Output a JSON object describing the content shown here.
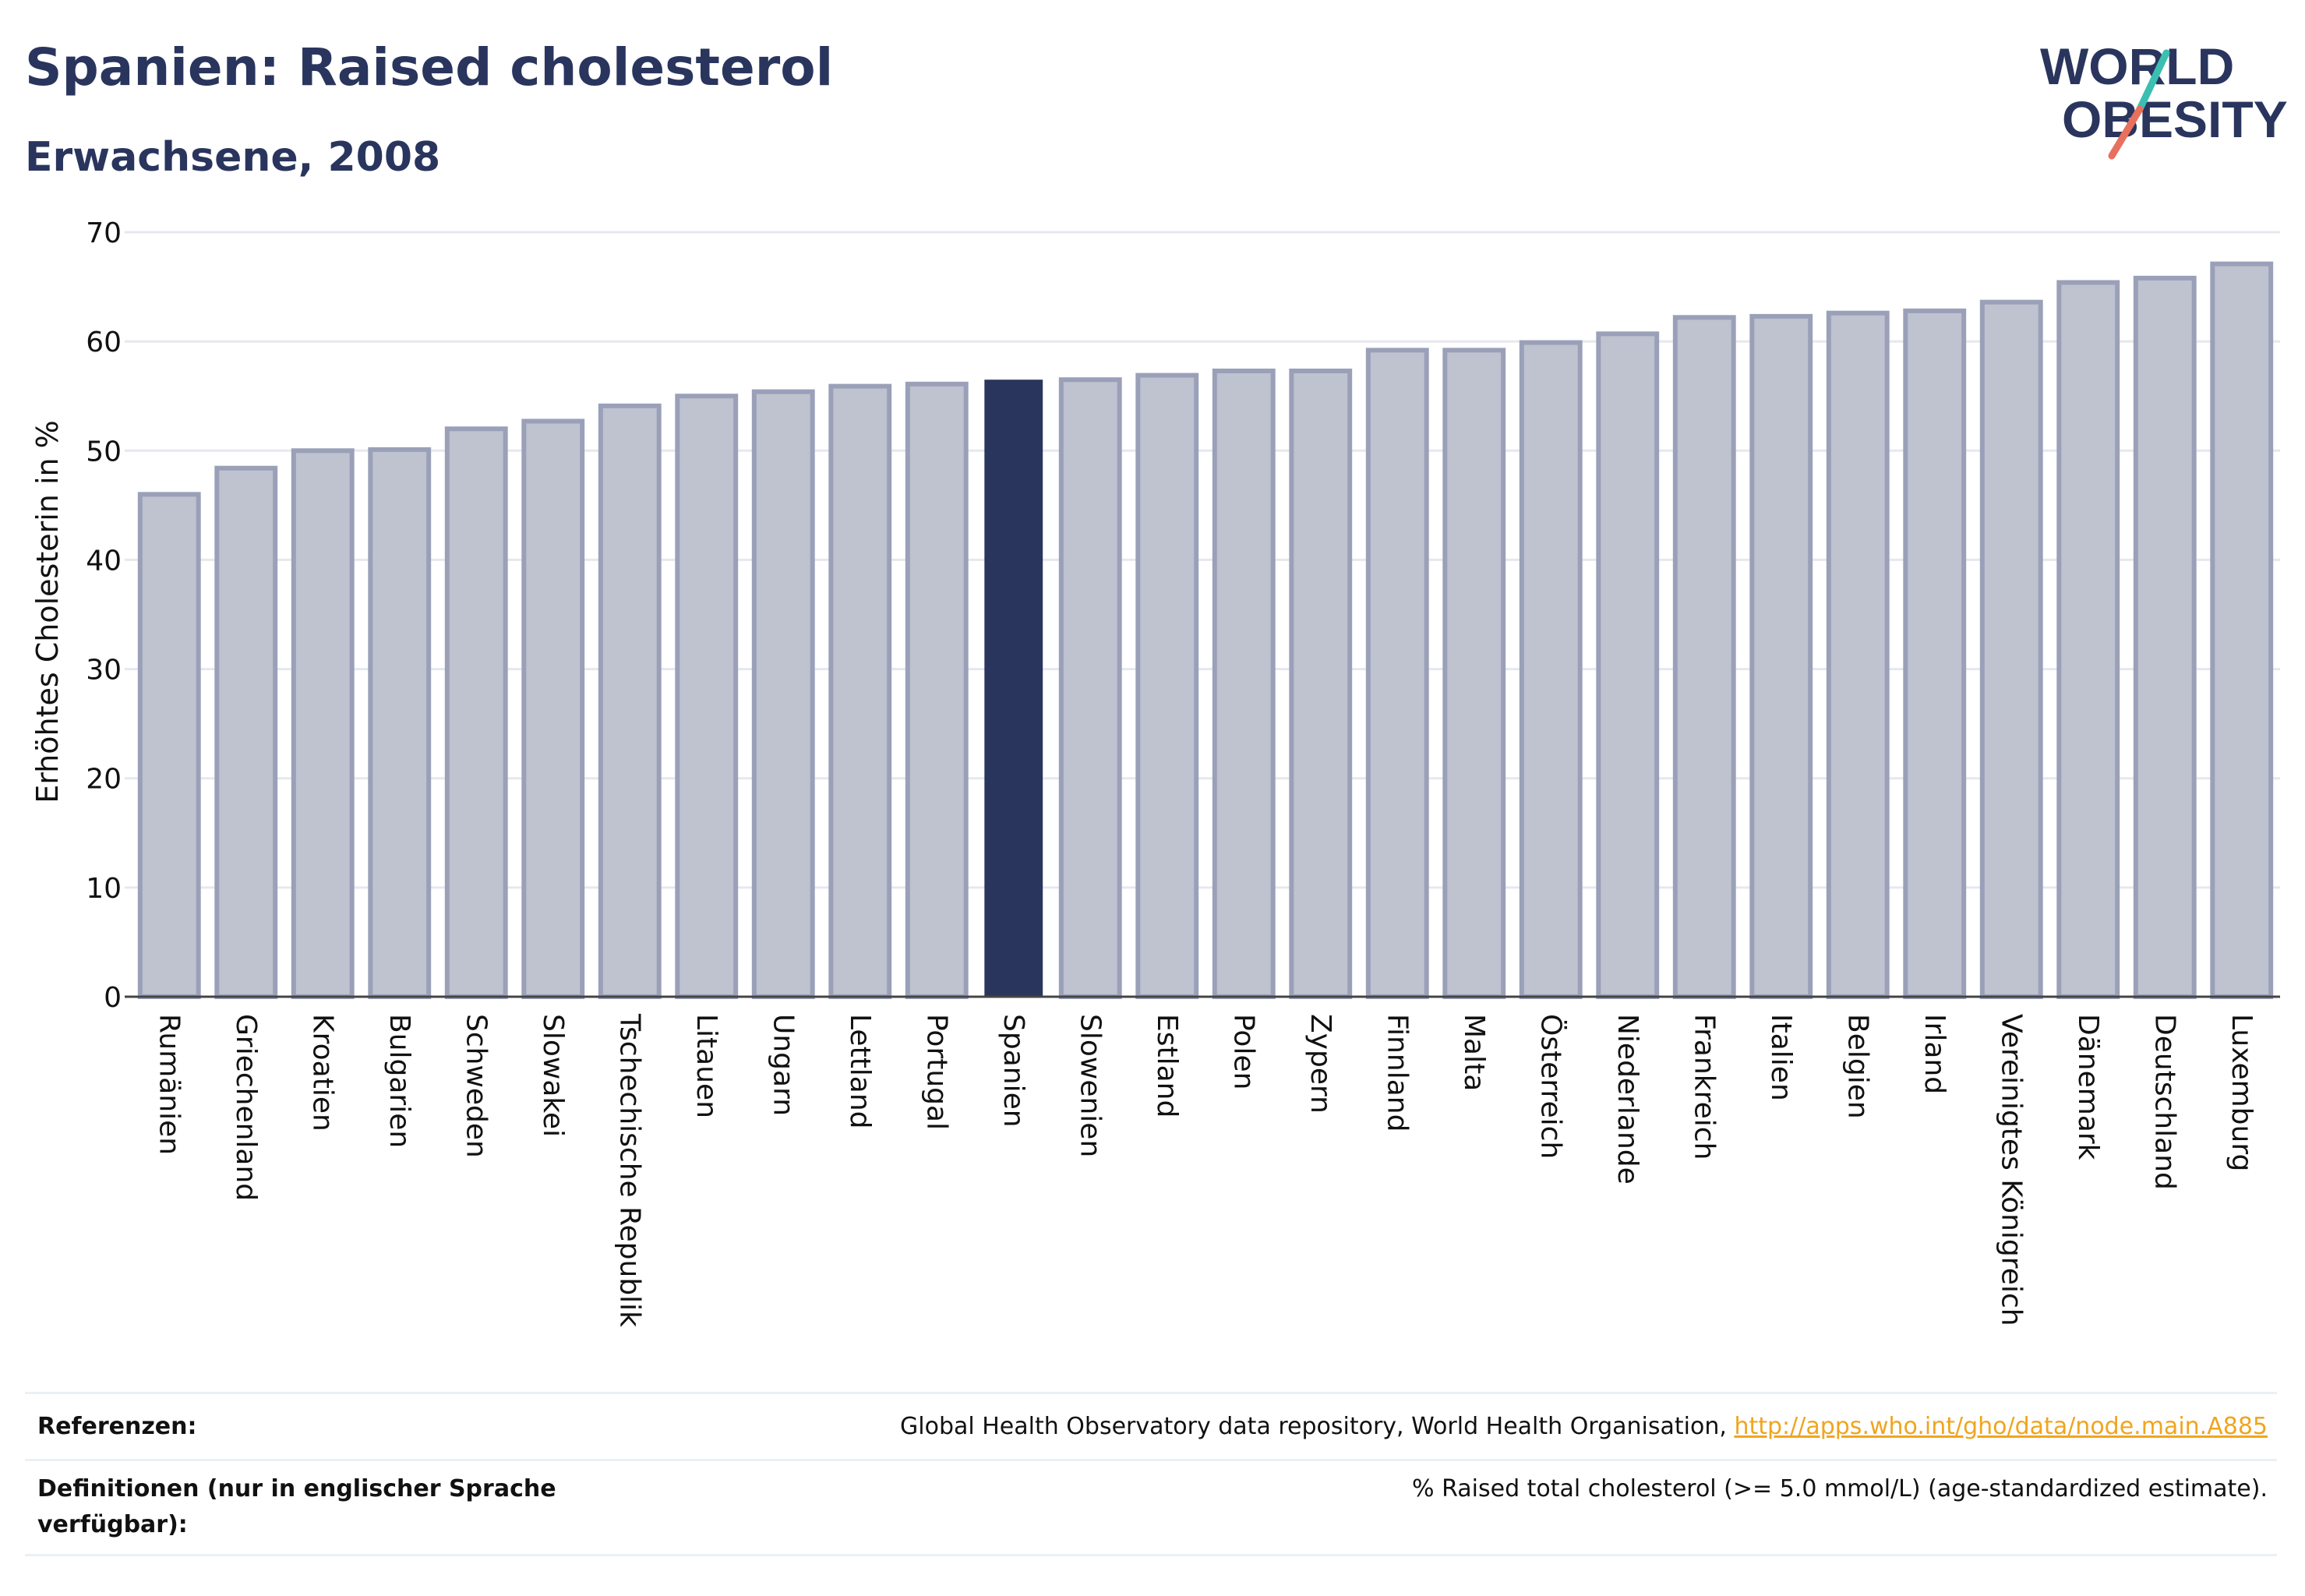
{
  "header": {
    "title": "Spanien: Raised cholesterol",
    "subtitle": "Erwachsene, 2008"
  },
  "logo": {
    "line1": "WORLD",
    "line2": "OBESITY",
    "text_color": "#2a355e",
    "accent_teal": "#3bbfb1",
    "accent_coral": "#e8705e"
  },
  "colors": {
    "bar_fill": "#bfc2cf",
    "bar_stroke": "#9aa0b8",
    "highlight": "#2a355e",
    "grid": "#e6e8ef",
    "axis_text": "#111111"
  },
  "chart_data": {
    "type": "bar",
    "ylabel": "Erhöhtes Cholesterin in %",
    "xlabel": "",
    "ylim": [
      0,
      70
    ],
    "yticks": [
      0,
      10,
      20,
      30,
      40,
      50,
      60,
      70
    ],
    "grid": true,
    "highlight_category": "Spanien",
    "categories": [
      "Rumänien",
      "Griechenland",
      "Kroatien",
      "Bulgarien",
      "Schweden",
      "Slowakei",
      "Tschechische Republik",
      "Litauen",
      "Ungarn",
      "Lettland",
      "Portugal",
      "Spanien",
      "Slowenien",
      "Estland",
      "Polen",
      "Zypern",
      "Finnland",
      "Malta",
      "Österreich",
      "Niederlande",
      "Frankreich",
      "Italien",
      "Belgien",
      "Irland",
      "Vereinigtes Königreich",
      "Dänemark",
      "Deutschland",
      "Luxemburg"
    ],
    "values": [
      46.0,
      48.4,
      50.0,
      50.1,
      52.0,
      52.7,
      54.1,
      55.0,
      55.4,
      55.9,
      56.1,
      56.5,
      56.5,
      56.9,
      57.3,
      57.3,
      59.2,
      59.2,
      59.9,
      60.7,
      62.2,
      62.3,
      62.6,
      62.8,
      63.6,
      65.4,
      65.8,
      67.1
    ]
  },
  "footer": {
    "references_label": "Referenzen:",
    "references_text": "Global Health Observatory data repository, World Health Organisation, ",
    "references_link": "http://apps.who.int/gho/data/node.main.A885",
    "definitions_label": "Definitionen (nur in englischer Sprache verfügbar):",
    "definitions_text": "% Raised total cholesterol (>= 5.0 mmol/L) (age-standardized estimate)."
  }
}
